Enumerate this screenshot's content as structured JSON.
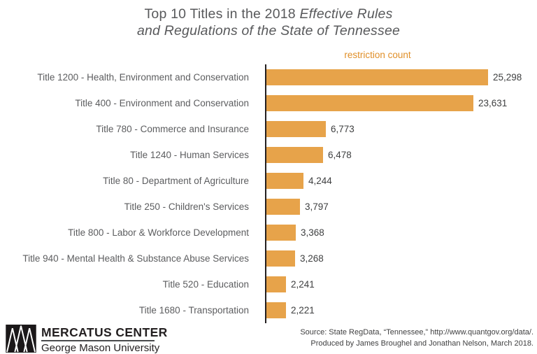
{
  "title": {
    "line1_regular": "Top 10 Titles in the 2018 ",
    "line1_italic": "Effective Rules",
    "line2_italic": "and Regulations of the State of Tennessee"
  },
  "chart_data": {
    "type": "bar",
    "orientation": "horizontal",
    "axis_label": "restriction count",
    "categories": [
      "Title 1200 - Health, Environment and Conservation",
      "Title 400 - Environment and Conservation",
      "Title 780 - Commerce and Insurance",
      "Title 1240 - Human Services",
      "Title 80 - Department of Agriculture",
      "Title 250 - Children's Services",
      "Title 800 - Labor & Workforce Development",
      "Title 940 - Mental Health & Substance Abuse Services",
      "Title 520 - Education",
      "Title 1680 - Transportation"
    ],
    "values": [
      25298,
      23631,
      6773,
      6478,
      4244,
      3797,
      3368,
      3268,
      2241,
      2221
    ],
    "value_labels": [
      "25,298",
      "23,631",
      "6,773",
      "6,478",
      "4,244",
      "3,797",
      "3,368",
      "3,268",
      "2,241",
      "2,221"
    ],
    "xlim": [
      0,
      25298
    ],
    "grid": false,
    "legend": false,
    "sorted": "descending"
  },
  "footer": {
    "logo": {
      "name": "MERCATUS CENTER",
      "subtitle": "George Mason University",
      "icon": "mercatus-triangles-mark"
    },
    "source_line1": "Source: State RegData, “Tennessee,” http://www.quantgov.org/data/.",
    "source_line2": "Produced by James Broughel and Jonathan Nelson, March 2018."
  },
  "colors": {
    "bar": "#e7a34a",
    "accent": "#e08f28",
    "title_text": "#58595b",
    "category_text": "#5c5d5f",
    "value_text": "#3f4041",
    "axis_line": "#231f20",
    "background": "#ffffff"
  }
}
